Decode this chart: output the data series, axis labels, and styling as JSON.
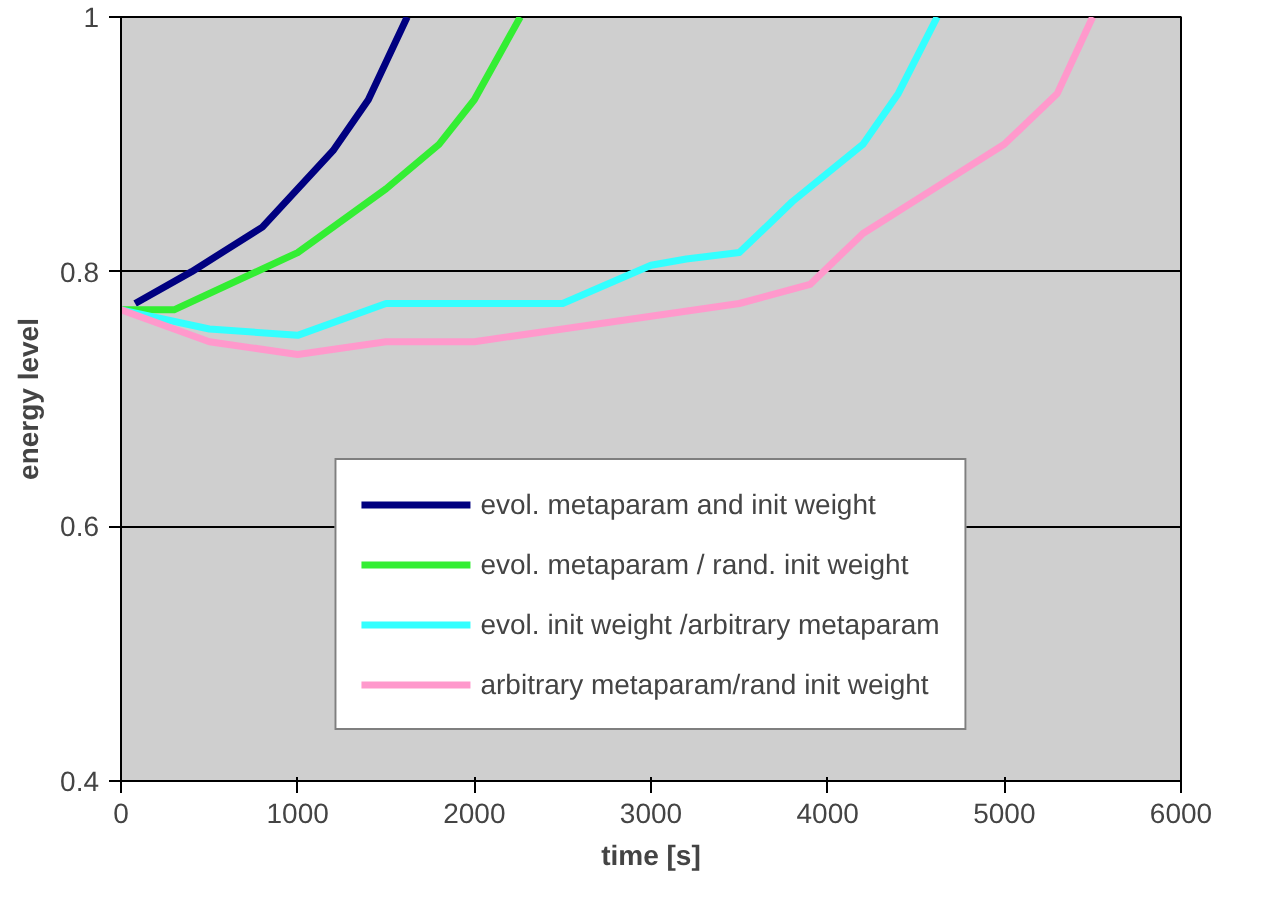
{
  "chart_data": {
    "type": "line",
    "xlabel": "time [s]",
    "ylabel": "energy level",
    "xlim": [
      0,
      6000
    ],
    "ylim": [
      0.4,
      1
    ],
    "xticks": [
      0,
      1000,
      2000,
      3000,
      4000,
      5000,
      6000
    ],
    "yticks": [
      0.4,
      0.6,
      0.8,
      1
    ],
    "grid": "y",
    "legend": "bottom",
    "series": [
      {
        "name": "evol. metaparam and init weight",
        "color": "#000080",
        "x": [
          80,
          400,
          800,
          1200,
          1400,
          1620
        ],
        "values": [
          0.775,
          0.8,
          0.835,
          0.895,
          0.935,
          1.0
        ]
      },
      {
        "name": "evol. metaparam / rand. init weight",
        "color": "#33ee33",
        "x": [
          0,
          300,
          1000,
          1500,
          1800,
          2000,
          2260
        ],
        "values": [
          0.77,
          0.77,
          0.815,
          0.865,
          0.9,
          0.935,
          1.0
        ]
      },
      {
        "name": "evol. init weight /arbitrary metaparam",
        "color": "#33ffff",
        "x": [
          0,
          500,
          1000,
          1500,
          2000,
          2500,
          3000,
          3200,
          3500,
          3800,
          4200,
          4400,
          4620
        ],
        "values": [
          0.77,
          0.755,
          0.75,
          0.775,
          0.775,
          0.775,
          0.805,
          0.81,
          0.815,
          0.855,
          0.9,
          0.94,
          1.0
        ]
      },
      {
        "name": "arbitrary metaparam/rand init weight",
        "color": "#ff99cc",
        "x": [
          0,
          500,
          1000,
          1500,
          2000,
          2500,
          3000,
          3500,
          3900,
          4200,
          4600,
          5000,
          5300,
          5500
        ],
        "values": [
          0.77,
          0.745,
          0.735,
          0.745,
          0.745,
          0.755,
          0.765,
          0.775,
          0.79,
          0.83,
          0.865,
          0.9,
          0.94,
          1.0
        ]
      }
    ]
  }
}
